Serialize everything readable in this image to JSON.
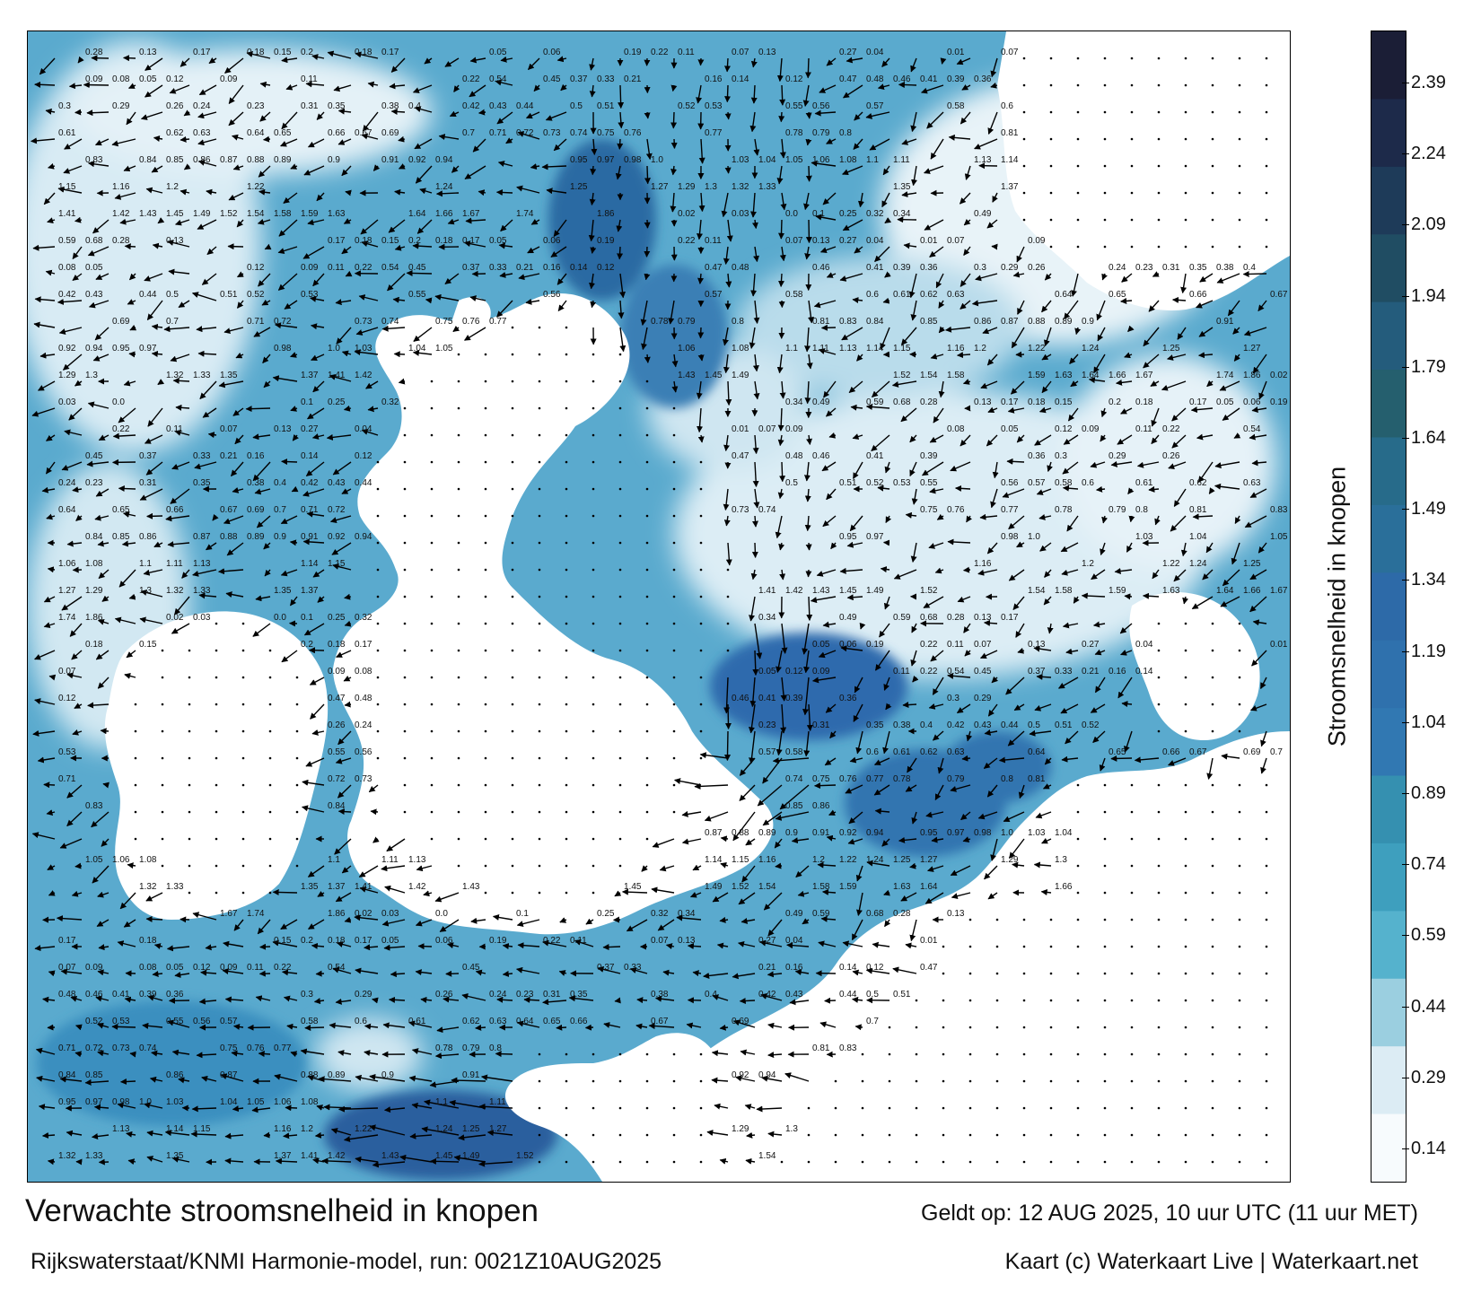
{
  "map": {
    "title": "Verwachte stroomsnelheid in knopen",
    "model_line": "Rijkswaterstaat/KNMI Harmonie-model, run: 0021Z10AUG2025",
    "valid_line": "Geldt op: 12 AUG 2025, 10 uur UTC (11 uur MET)",
    "credit_line": "Kaart (c) Waterkaart Live | Waterkaart.net",
    "land_color": "#ffffff",
    "arrow_color": "#000000",
    "speed_labels": [
      "0.28",
      "0.13",
      "0.17",
      "0.18",
      "0.15",
      "0.2",
      "0.18",
      "0.17",
      "0.05",
      "0.06",
      "0.19",
      "0.22",
      "0.11",
      "0.07",
      "0.13",
      "0.27",
      "0.04",
      "0.01",
      "0.07",
      "0.09",
      "0.08",
      "0.05",
      "0.12",
      "0.09",
      "0.11",
      "0.22",
      "0.54",
      "0.45",
      "0.37",
      "0.33",
      "0.21",
      "0.16",
      "0.14",
      "0.12",
      "0.47",
      "0.48",
      "0.46",
      "0.41",
      "0.39",
      "0.36",
      "0.3",
      "0.29",
      "0.26",
      "0.24",
      "0.23",
      "0.31",
      "0.35",
      "0.38",
      "0.4",
      "0.42",
      "0.43",
      "0.44",
      "0.5",
      "0.51",
      "0.52",
      "0.53",
      "0.55",
      "0.56",
      "0.57",
      "0.58",
      "0.6",
      "0.61",
      "0.62",
      "0.63",
      "0.64",
      "0.65",
      "0.66",
      "0.67",
      "0.69",
      "0.7",
      "0.71",
      "0.72",
      "0.73",
      "0.74",
      "0.75",
      "0.76",
      "0.77",
      "0.78",
      "0.79",
      "0.8",
      "0.81",
      "0.83",
      "0.84",
      "0.85",
      "0.86",
      "0.87",
      "0.88",
      "0.89",
      "0.9",
      "0.91",
      "0.92",
      "0.94",
      "0.95",
      "0.97",
      "0.98",
      "1.0",
      "1.03",
      "1.04",
      "1.05",
      "1.06",
      "1.08",
      "1.1",
      "1.11",
      "1.13",
      "1.14",
      "1.15",
      "1.16",
      "1.2",
      "1.22",
      "1.24",
      "1.25",
      "1.27",
      "1.29",
      "1.3",
      "1.32",
      "1.33",
      "1.35",
      "1.37",
      "1.41",
      "1.42",
      "1.43",
      "1.45",
      "1.49",
      "1.52",
      "1.54",
      "1.58",
      "1.59",
      "1.63",
      "1.64",
      "1.66",
      "1.67",
      "1.74",
      "1.86",
      "0.02",
      "0.03",
      "0.0",
      "0.1",
      "0.25",
      "0.32",
      "0.34",
      "0.49",
      "0.59",
      "0.68"
    ]
  },
  "colorbar": {
    "label": "Stroomsnelheid in knopen",
    "ticks": [
      "2.39",
      "2.24",
      "2.09",
      "1.94",
      "1.79",
      "1.64",
      "1.49",
      "1.34",
      "1.19",
      "1.04",
      "0.89",
      "0.74",
      "0.59",
      "0.44",
      "0.29",
      "0.14"
    ],
    "colors": [
      "#1b1e36",
      "#1d2a4a",
      "#1e3b59",
      "#204d63",
      "#245c7c",
      "#255f6e",
      "#276b8a",
      "#2a6f9a",
      "#2d6aa8",
      "#2f71ad",
      "#3178b2",
      "#3590b0",
      "#3e9fbe",
      "#55b2cd",
      "#9bcfe0",
      "#dcecf4",
      "#f7fbfd"
    ]
  }
}
